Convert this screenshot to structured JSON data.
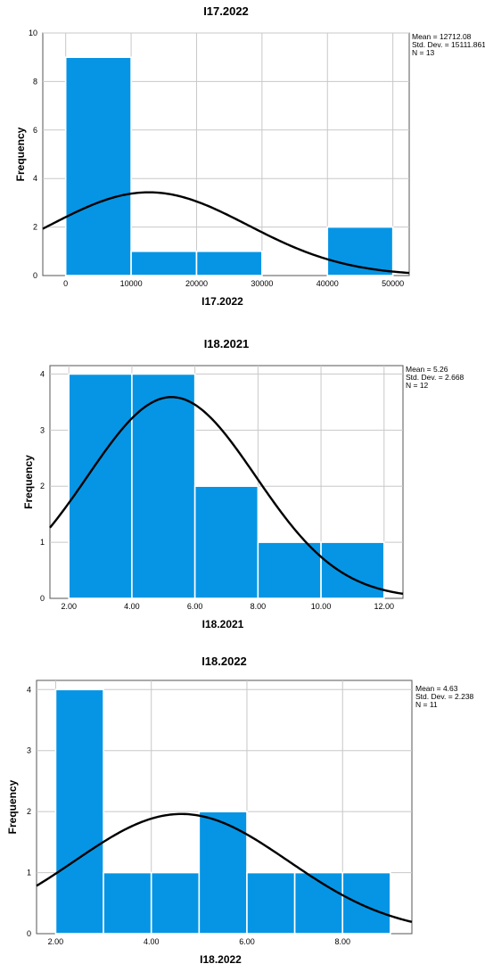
{
  "colors": {
    "bar": "#0695e4",
    "bar_edge": "#ffffff",
    "curve": "#000000",
    "grid": "#c8c8c8",
    "axis": "#555555"
  },
  "chart_data": [
    {
      "type": "histogram",
      "title": "I17.2022",
      "xlabel": "I17.2022",
      "ylabel": "Frequency",
      "xlim": [
        -3500,
        52500
      ],
      "ylim": [
        0,
        10
      ],
      "xticks": [
        0,
        10000,
        20000,
        30000,
        40000,
        50000
      ],
      "xtick_labels": [
        "0",
        "10000",
        "20000",
        "30000",
        "40000",
        "50000"
      ],
      "yticks": [
        0,
        2,
        4,
        6,
        8,
        10
      ],
      "ytick_labels": [
        "0",
        "2",
        "4",
        "6",
        "8",
        "10"
      ],
      "bins": [
        {
          "start": 0,
          "end": 10000,
          "count": 9
        },
        {
          "start": 10000,
          "end": 20000,
          "count": 1
        },
        {
          "start": 20000,
          "end": 30000,
          "count": 1
        },
        {
          "start": 30000,
          "end": 40000,
          "count": 0
        },
        {
          "start": 40000,
          "end": 50000,
          "count": 2
        }
      ],
      "bin_width": 10000,
      "stats": {
        "mean": 12712.08,
        "std_dev": 15111.861,
        "n": 13
      },
      "stats_text": [
        "Mean = 12712.08",
        "Std. Dev. = 15111.861",
        "N = 13"
      ],
      "grid": true,
      "normal_curve": true
    },
    {
      "type": "histogram",
      "title": "I18.2021",
      "xlabel": "I18.2021",
      "ylabel": "Frequency",
      "xlim": [
        1.4,
        12.6
      ],
      "ylim": [
        0,
        4.15
      ],
      "xticks": [
        2,
        4,
        6,
        8,
        10,
        12
      ],
      "xtick_labels": [
        "2.00",
        "4.00",
        "6.00",
        "8.00",
        "10.00",
        "12.00"
      ],
      "yticks": [
        0,
        1,
        2,
        3,
        4
      ],
      "ytick_labels": [
        "0",
        "1",
        "2",
        "3",
        "4"
      ],
      "bins": [
        {
          "start": 2,
          "end": 4,
          "count": 4
        },
        {
          "start": 4,
          "end": 6,
          "count": 4
        },
        {
          "start": 6,
          "end": 8,
          "count": 2
        },
        {
          "start": 8,
          "end": 10,
          "count": 1
        },
        {
          "start": 10,
          "end": 12,
          "count": 1
        }
      ],
      "bin_width": 2,
      "stats": {
        "mean": 5.26,
        "std_dev": 2.668,
        "n": 12
      },
      "stats_text": [
        "Mean = 5.26",
        "Std. Dev. = 2.668",
        "N = 12"
      ],
      "grid": true,
      "normal_curve": true
    },
    {
      "type": "histogram",
      "title": "I18.2022",
      "xlabel": "I18.2022",
      "ylabel": "Frequency",
      "xlim": [
        1.6,
        9.45
      ],
      "ylim": [
        0,
        4.15
      ],
      "xticks": [
        2,
        4,
        6,
        8
      ],
      "xtick_labels": [
        "2.00",
        "4.00",
        "6.00",
        "8.00"
      ],
      "yticks": [
        0,
        1,
        2,
        3,
        4
      ],
      "ytick_labels": [
        "0",
        "1",
        "2",
        "3",
        "4"
      ],
      "bins": [
        {
          "start": 2,
          "end": 3,
          "count": 4
        },
        {
          "start": 3,
          "end": 4,
          "count": 1
        },
        {
          "start": 4,
          "end": 5,
          "count": 1
        },
        {
          "start": 5,
          "end": 6,
          "count": 2
        },
        {
          "start": 6,
          "end": 7,
          "count": 1
        },
        {
          "start": 7,
          "end": 8,
          "count": 1
        },
        {
          "start": 8,
          "end": 9,
          "count": 1
        }
      ],
      "bin_width": 1,
      "stats": {
        "mean": 4.63,
        "std_dev": 2.238,
        "n": 11
      },
      "stats_text": [
        "Mean = 4.63",
        "Std. Dev. = 2.238",
        "N = 11"
      ],
      "grid": true,
      "normal_curve": true
    }
  ]
}
